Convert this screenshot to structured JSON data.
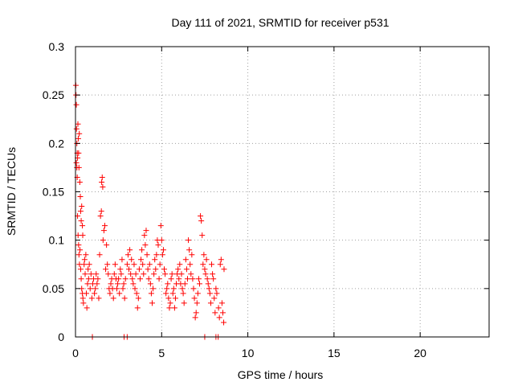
{
  "chart_data": {
    "type": "scatter",
    "title": "Day 111 of 2021, SRMTID for receiver p531",
    "xlabel": "GPS time / hours",
    "ylabel": "SRMTID / TECUs",
    "xlim": [
      0,
      24
    ],
    "ylim": [
      0,
      0.3
    ],
    "xticks": [
      0,
      5,
      10,
      15,
      20
    ],
    "xtick_labels": [
      "0",
      "5",
      "10",
      "15",
      "20"
    ],
    "yticks": [
      0,
      0.05,
      0.1,
      0.15,
      0.2,
      0.25,
      0.3
    ],
    "ytick_labels": [
      "0",
      "0.05",
      "0.1",
      "0.15",
      "0.2",
      "0.25",
      "0.3"
    ],
    "grid": true,
    "marker": "plus",
    "color": "#ff0000",
    "series": [
      {
        "name": "SRMTID",
        "points": [
          [
            0.02,
            0.26
          ],
          [
            0.03,
            0.25
          ],
          [
            0.05,
            0.24
          ],
          [
            0.06,
            0.215
          ],
          [
            0.08,
            0.2
          ],
          [
            0.1,
            0.19
          ],
          [
            0.12,
            0.185
          ],
          [
            0.14,
            0.22
          ],
          [
            0.16,
            0.205
          ],
          [
            0.18,
            0.19
          ],
          [
            0.2,
            0.175
          ],
          [
            0.22,
            0.21
          ],
          [
            0.25,
            0.16
          ],
          [
            0.28,
            0.145
          ],
          [
            0.3,
            0.13
          ],
          [
            0.33,
            0.12
          ],
          [
            0.36,
            0.135
          ],
          [
            0.4,
            0.115
          ],
          [
            0.42,
            0.105
          ],
          [
            0.05,
            0.18
          ],
          [
            0.08,
            0.175
          ],
          [
            0.1,
            0.165
          ],
          [
            0.12,
            0.125
          ],
          [
            0.15,
            0.105
          ],
          [
            0.18,
            0.095
          ],
          [
            0.2,
            0.085
          ],
          [
            0.23,
            0.075
          ],
          [
            0.26,
            0.09
          ],
          [
            0.3,
            0.07
          ],
          [
            0.33,
            0.06
          ],
          [
            0.36,
            0.05
          ],
          [
            0.4,
            0.045
          ],
          [
            0.43,
            0.04
          ],
          [
            0.46,
            0.035
          ],
          [
            0.5,
            0.075
          ],
          [
            0.53,
            0.08
          ],
          [
            0.56,
            0.065
          ],
          [
            0.6,
            0.085
          ],
          [
            0.63,
            0.045
          ],
          [
            0.66,
            0.03
          ],
          [
            0.7,
            0.055
          ],
          [
            0.73,
            0.07
          ],
          [
            0.76,
            0.06
          ],
          [
            0.8,
            0.075
          ],
          [
            0.85,
            0.05
          ],
          [
            0.9,
            0.065
          ],
          [
            0.95,
            0.04
          ],
          [
            1.0,
            0.055
          ],
          [
            1.05,
            0.06
          ],
          [
            1.1,
            0.045
          ],
          [
            1.15,
            0.05
          ],
          [
            1.2,
            0.065
          ],
          [
            1.25,
            0.055
          ],
          [
            1.3,
            0.06
          ],
          [
            1.35,
            0.04
          ],
          [
            1.4,
            0.085
          ],
          [
            1.45,
            0.125
          ],
          [
            1.5,
            0.13
          ],
          [
            1.52,
            0.16
          ],
          [
            1.55,
            0.165
          ],
          [
            1.58,
            0.155
          ],
          [
            1.6,
            0.1
          ],
          [
            1.65,
            0.11
          ],
          [
            1.7,
            0.115
          ],
          [
            1.75,
            0.07
          ],
          [
            1.8,
            0.095
          ],
          [
            1.85,
            0.075
          ],
          [
            1.9,
            0.065
          ],
          [
            1.95,
            0.05
          ],
          [
            2.0,
            0.045
          ],
          [
            2.05,
            0.055
          ],
          [
            2.1,
            0.06
          ],
          [
            2.15,
            0.05
          ],
          [
            2.2,
            0.04
          ],
          [
            2.25,
            0.065
          ],
          [
            2.3,
            0.075
          ],
          [
            2.35,
            0.06
          ],
          [
            2.4,
            0.05
          ],
          [
            2.45,
            0.055
          ],
          [
            2.5,
            0.06
          ],
          [
            2.55,
            0.045
          ],
          [
            2.6,
            0.07
          ],
          [
            2.65,
            0.065
          ],
          [
            2.7,
            0.08
          ],
          [
            2.75,
            0.05
          ],
          [
            2.8,
            0.055
          ],
          [
            2.85,
            0.04
          ],
          [
            2.9,
            0.06
          ],
          [
            3.0,
            0.075
          ],
          [
            3.05,
            0.085
          ],
          [
            3.1,
            0.07
          ],
          [
            3.15,
            0.09
          ],
          [
            3.2,
            0.065
          ],
          [
            3.25,
            0.08
          ],
          [
            3.3,
            0.06
          ],
          [
            3.35,
            0.055
          ],
          [
            3.4,
            0.075
          ],
          [
            3.45,
            0.05
          ],
          [
            3.5,
            0.065
          ],
          [
            3.55,
            0.045
          ],
          [
            3.6,
            0.03
          ],
          [
            3.65,
            0.04
          ],
          [
            3.7,
            0.07
          ],
          [
            3.75,
            0.06
          ],
          [
            3.8,
            0.08
          ],
          [
            3.85,
            0.09
          ],
          [
            3.9,
            0.075
          ],
          [
            3.95,
            0.065
          ],
          [
            4.0,
            0.105
          ],
          [
            4.05,
            0.095
          ],
          [
            4.1,
            0.11
          ],
          [
            4.15,
            0.085
          ],
          [
            4.2,
            0.07
          ],
          [
            4.25,
            0.06
          ],
          [
            4.3,
            0.075
          ],
          [
            4.35,
            0.055
          ],
          [
            4.4,
            0.045
          ],
          [
            4.45,
            0.035
          ],
          [
            4.5,
            0.05
          ],
          [
            4.55,
            0.065
          ],
          [
            4.6,
            0.08
          ],
          [
            4.65,
            0.07
          ],
          [
            4.7,
            0.085
          ],
          [
            4.75,
            0.1
          ],
          [
            4.8,
            0.095
          ],
          [
            4.85,
            0.06
          ],
          [
            4.9,
            0.075
          ],
          [
            4.95,
            0.115
          ],
          [
            5.0,
            0.1
          ],
          [
            5.05,
            0.085
          ],
          [
            5.1,
            0.09
          ],
          [
            5.15,
            0.07
          ],
          [
            5.2,
            0.065
          ],
          [
            5.25,
            0.045
          ],
          [
            5.3,
            0.05
          ],
          [
            5.35,
            0.055
          ],
          [
            5.4,
            0.04
          ],
          [
            5.45,
            0.03
          ],
          [
            5.5,
            0.035
          ],
          [
            5.55,
            0.06
          ],
          [
            5.6,
            0.065
          ],
          [
            5.65,
            0.045
          ],
          [
            5.7,
            0.05
          ],
          [
            5.75,
            0.03
          ],
          [
            5.8,
            0.04
          ],
          [
            5.85,
            0.055
          ],
          [
            5.9,
            0.065
          ],
          [
            5.95,
            0.07
          ],
          [
            6.0,
            0.06
          ],
          [
            6.05,
            0.075
          ],
          [
            6.1,
            0.055
          ],
          [
            6.15,
            0.065
          ],
          [
            6.2,
            0.05
          ],
          [
            6.25,
            0.045
          ],
          [
            6.3,
            0.035
          ],
          [
            6.35,
            0.055
          ],
          [
            6.4,
            0.08
          ],
          [
            6.45,
            0.07
          ],
          [
            6.5,
            0.06
          ],
          [
            6.55,
            0.1
          ],
          [
            6.6,
            0.09
          ],
          [
            6.65,
            0.075
          ],
          [
            6.7,
            0.065
          ],
          [
            6.75,
            0.085
          ],
          [
            6.8,
            0.06
          ],
          [
            6.85,
            0.05
          ],
          [
            6.9,
            0.04
          ],
          [
            6.95,
            0.02
          ],
          [
            7.0,
            0.025
          ],
          [
            7.05,
            0.035
          ],
          [
            7.1,
            0.045
          ],
          [
            7.15,
            0.06
          ],
          [
            7.2,
            0.055
          ],
          [
            7.25,
            0.125
          ],
          [
            7.3,
            0.12
          ],
          [
            7.35,
            0.105
          ],
          [
            7.4,
            0.075
          ],
          [
            7.45,
            0.085
          ],
          [
            7.5,
            0.07
          ],
          [
            7.55,
            0.065
          ],
          [
            7.6,
            0.08
          ],
          [
            7.65,
            0.06
          ],
          [
            7.7,
            0.055
          ],
          [
            7.75,
            0.05
          ],
          [
            7.8,
            0.045
          ],
          [
            7.85,
            0.035
          ],
          [
            7.9,
            0.075
          ],
          [
            7.95,
            0.065
          ],
          [
            8.0,
            0.06
          ],
          [
            8.05,
            0.04
          ],
          [
            8.1,
            0.025
          ],
          [
            8.15,
            0.05
          ],
          [
            8.2,
            0.045
          ],
          [
            8.3,
            0.03
          ],
          [
            8.35,
            0.02
          ],
          [
            8.4,
            0.075
          ],
          [
            8.45,
            0.08
          ],
          [
            8.5,
            0.035
          ],
          [
            8.55,
            0.025
          ],
          [
            8.6,
            0.015
          ],
          [
            8.62,
            0.07
          ],
          [
            0.98,
            0.0
          ],
          [
            2.82,
            0.0
          ],
          [
            3.0,
            0.0
          ],
          [
            7.5,
            0.0
          ],
          [
            8.15,
            0.0
          ],
          [
            8.28,
            0.0
          ]
        ]
      }
    ]
  }
}
